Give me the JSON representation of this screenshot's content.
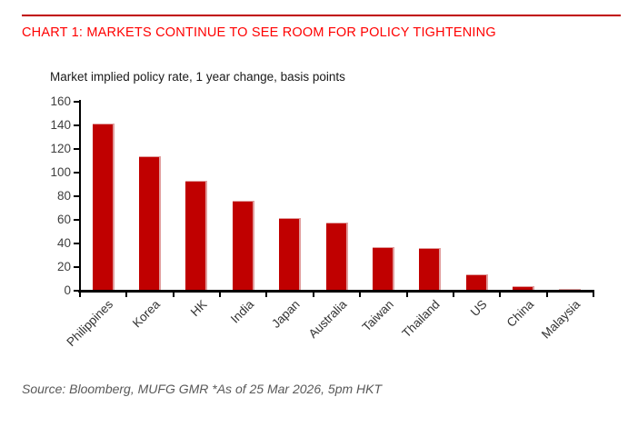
{
  "header": {
    "title": "CHART 1: MARKETS CONTINUE TO SEE ROOM FOR POLICY TIGHTENING"
  },
  "chart_data": {
    "type": "bar",
    "title": "Market implied policy rate, 1 year change, basis points",
    "categories": [
      "Philippines",
      "Korea",
      "HK",
      "India",
      "Japan",
      "Australia",
      "Taiwan",
      "Thailand",
      "US",
      "China",
      "Malaysia"
    ],
    "values": [
      141,
      113,
      92,
      75,
      61,
      57,
      36,
      35,
      13,
      3,
      1
    ],
    "xlabel": "",
    "ylabel": "",
    "ylim": [
      0,
      160
    ],
    "y_ticks": [
      0,
      20,
      40,
      60,
      80,
      100,
      120,
      140,
      160
    ],
    "grid": false,
    "legend": "none",
    "bar_color": "#c00000",
    "bar_edge_color": "#e09c9c"
  },
  "footer": {
    "source": "Source: Bloomberg, MUFG GMR *As of 25 Mar 2026, 5pm HKT"
  },
  "colors": {
    "title_red": "#ff0000",
    "rule_red": "#c00000",
    "axis_black": "#000000",
    "tick_label_gray": "#404040",
    "source_gray": "#595959"
  }
}
